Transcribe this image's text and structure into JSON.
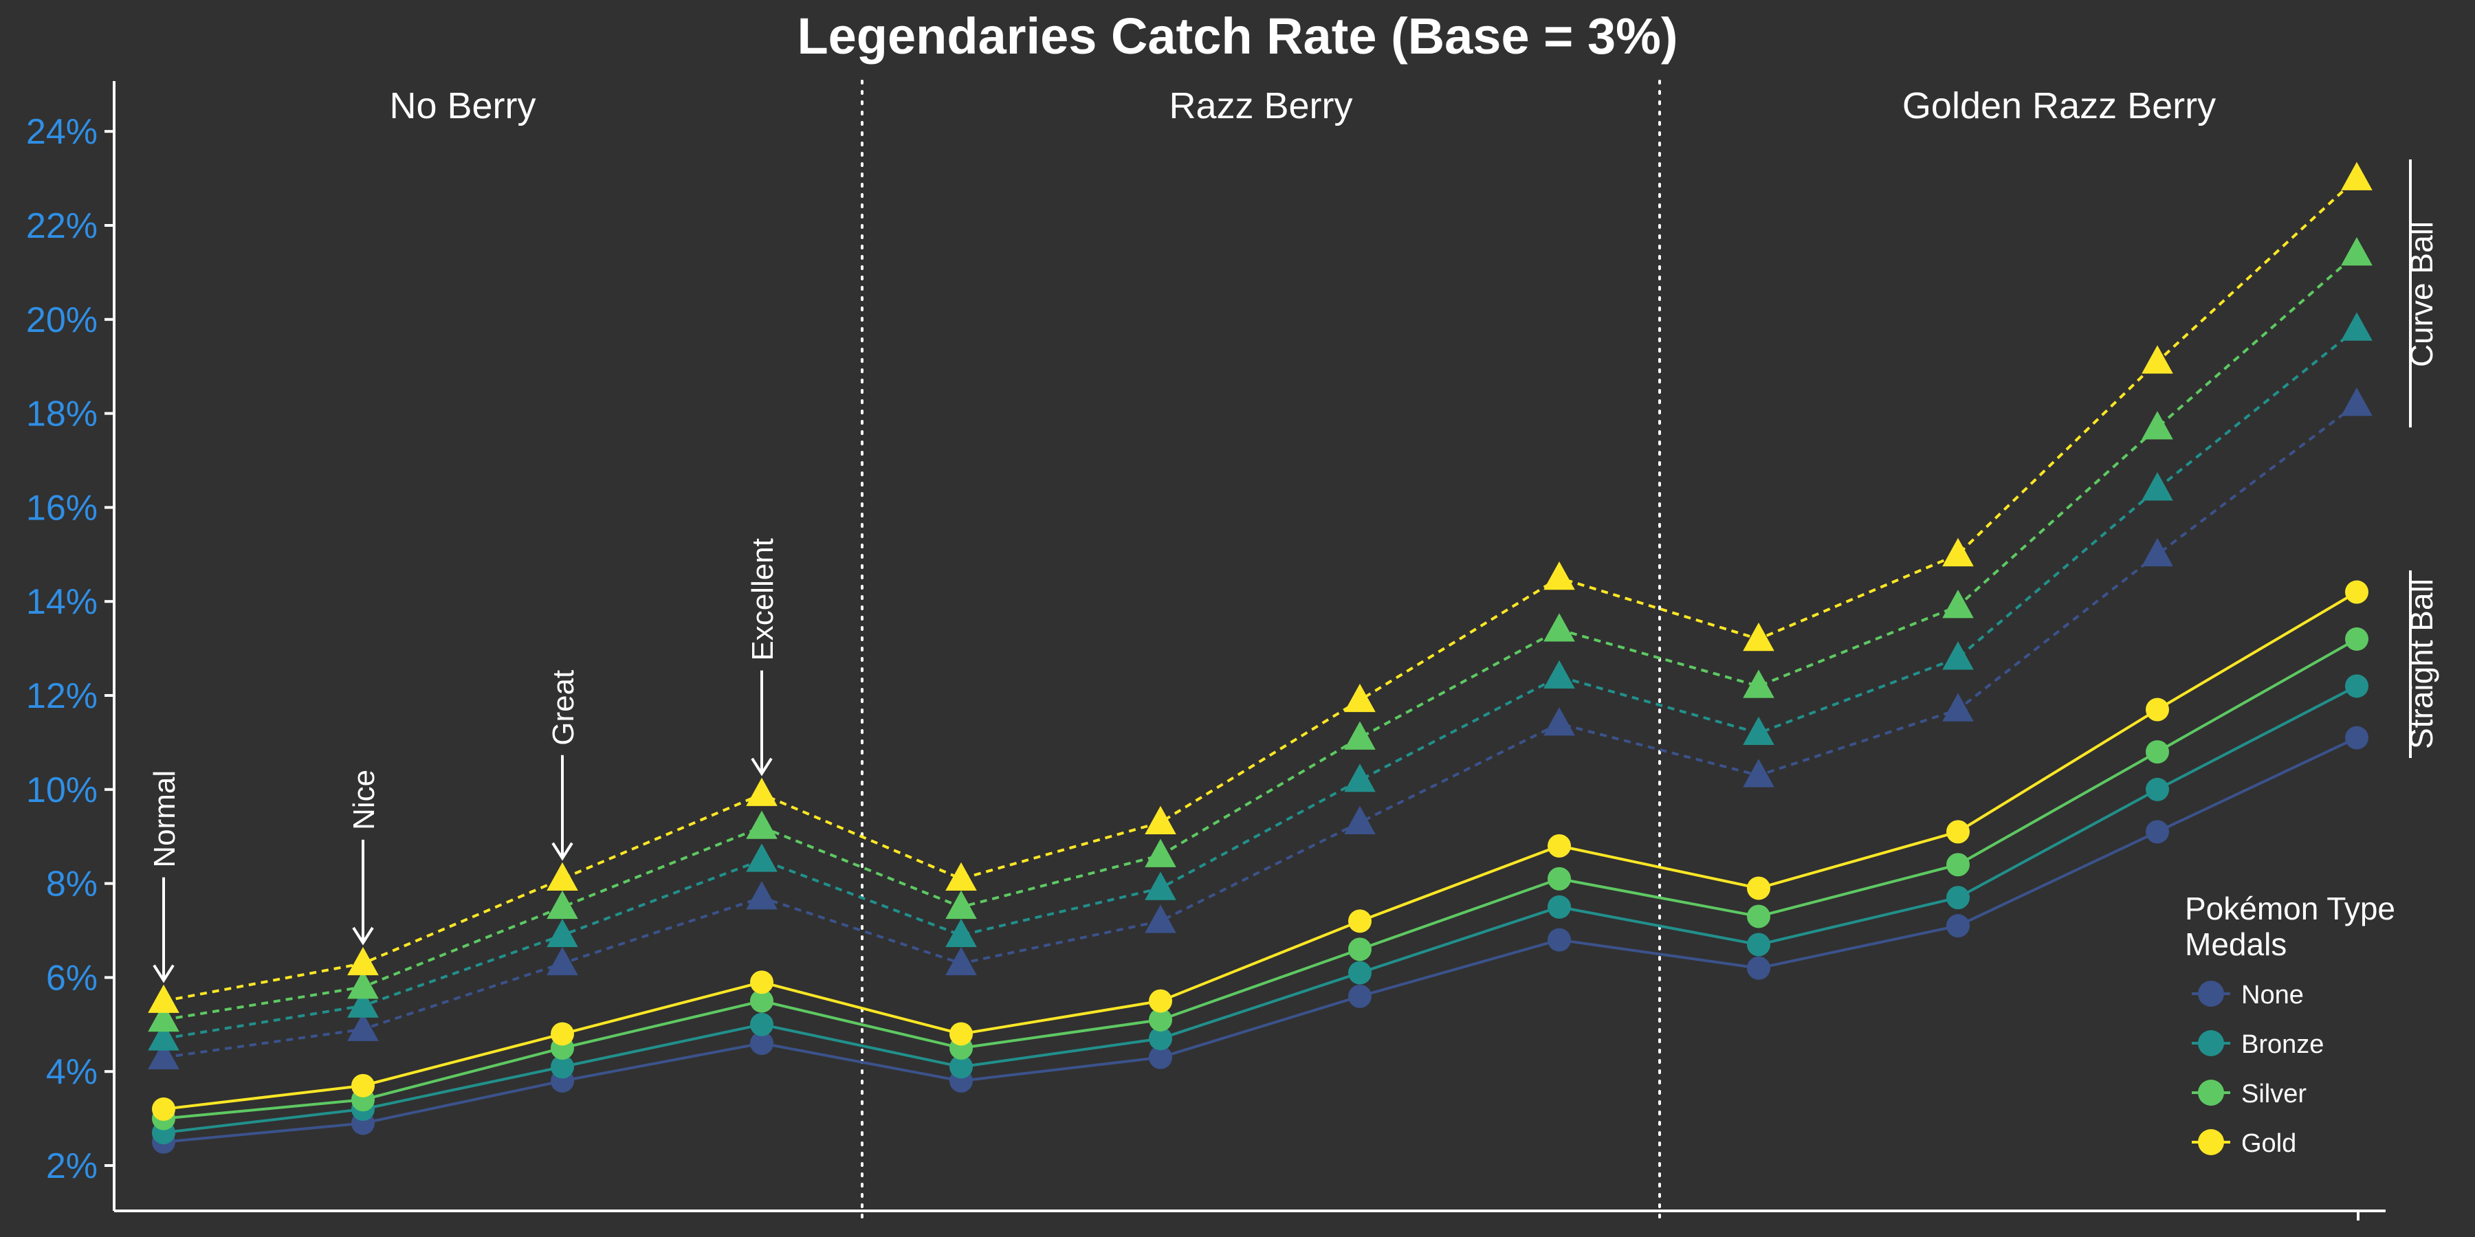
{
  "chart_data": {
    "type": "line",
    "title": "Legendaries Catch Rate (Base = 3%)",
    "sections": [
      "No Berry",
      "Razz Berry",
      "Golden Razz Berry"
    ],
    "throws": [
      "Normal",
      "Nice",
      "Great",
      "Excellent"
    ],
    "ylim": [
      1.5,
      25
    ],
    "yticks": [
      2,
      4,
      6,
      8,
      10,
      12,
      14,
      16,
      18,
      20,
      22,
      24
    ],
    "ytick_labels": [
      "2%",
      "4%",
      "6%",
      "8%",
      "10%",
      "12%",
      "14%",
      "16%",
      "18%",
      "20%",
      "22%",
      "24%"
    ],
    "grid": false,
    "side_labels": [
      "Curve Ball",
      "Straight Ball"
    ],
    "legend": {
      "title_line1": "Pokémon Type",
      "title_line2": "Medals",
      "position": "right",
      "entries": [
        "None",
        "Bronze",
        "Silver",
        "Gold"
      ]
    },
    "colors": {
      "None": "#3b528b",
      "Bronze": "#21908c",
      "Silver": "#5ec962",
      "Gold": "#fde725",
      "background": "#313131",
      "tick_label": "#2f8fe6",
      "text": "#ffffff"
    },
    "series": [
      {
        "name": "None",
        "ball": "Straight Ball",
        "values": [
          2.5,
          2.9,
          3.8,
          4.6,
          3.8,
          4.3,
          5.6,
          6.8,
          6.2,
          7.1,
          9.1,
          11.1
        ]
      },
      {
        "name": "Bronze",
        "ball": "Straight Ball",
        "values": [
          2.7,
          3.2,
          4.1,
          5.0,
          4.1,
          4.7,
          6.1,
          7.5,
          6.7,
          7.7,
          10.0,
          12.2
        ]
      },
      {
        "name": "Silver",
        "ball": "Straight Ball",
        "values": [
          3.0,
          3.4,
          4.5,
          5.5,
          4.5,
          5.1,
          6.6,
          8.1,
          7.3,
          8.4,
          10.8,
          13.2
        ]
      },
      {
        "name": "Gold",
        "ball": "Straight Ball",
        "values": [
          3.2,
          3.7,
          4.8,
          5.9,
          4.8,
          5.5,
          7.2,
          8.8,
          7.9,
          9.1,
          11.7,
          14.2
        ]
      },
      {
        "name": "None",
        "ball": "Curve Ball",
        "values": [
          4.3,
          4.9,
          6.3,
          7.7,
          6.3,
          7.2,
          9.3,
          11.4,
          10.3,
          11.7,
          15.0,
          18.2
        ]
      },
      {
        "name": "Bronze",
        "ball": "Curve Ball",
        "values": [
          4.7,
          5.4,
          6.9,
          8.5,
          6.9,
          7.9,
          10.2,
          12.4,
          11.2,
          12.8,
          16.4,
          19.8
        ]
      },
      {
        "name": "Silver",
        "ball": "Curve Ball",
        "values": [
          5.1,
          5.8,
          7.5,
          9.2,
          7.5,
          8.6,
          11.1,
          13.4,
          12.2,
          13.9,
          17.7,
          21.4
        ]
      },
      {
        "name": "Gold",
        "ball": "Curve Ball",
        "values": [
          5.5,
          6.3,
          8.1,
          9.9,
          8.1,
          9.3,
          11.9,
          14.5,
          13.2,
          15.0,
          19.1,
          23.0
        ]
      }
    ]
  }
}
